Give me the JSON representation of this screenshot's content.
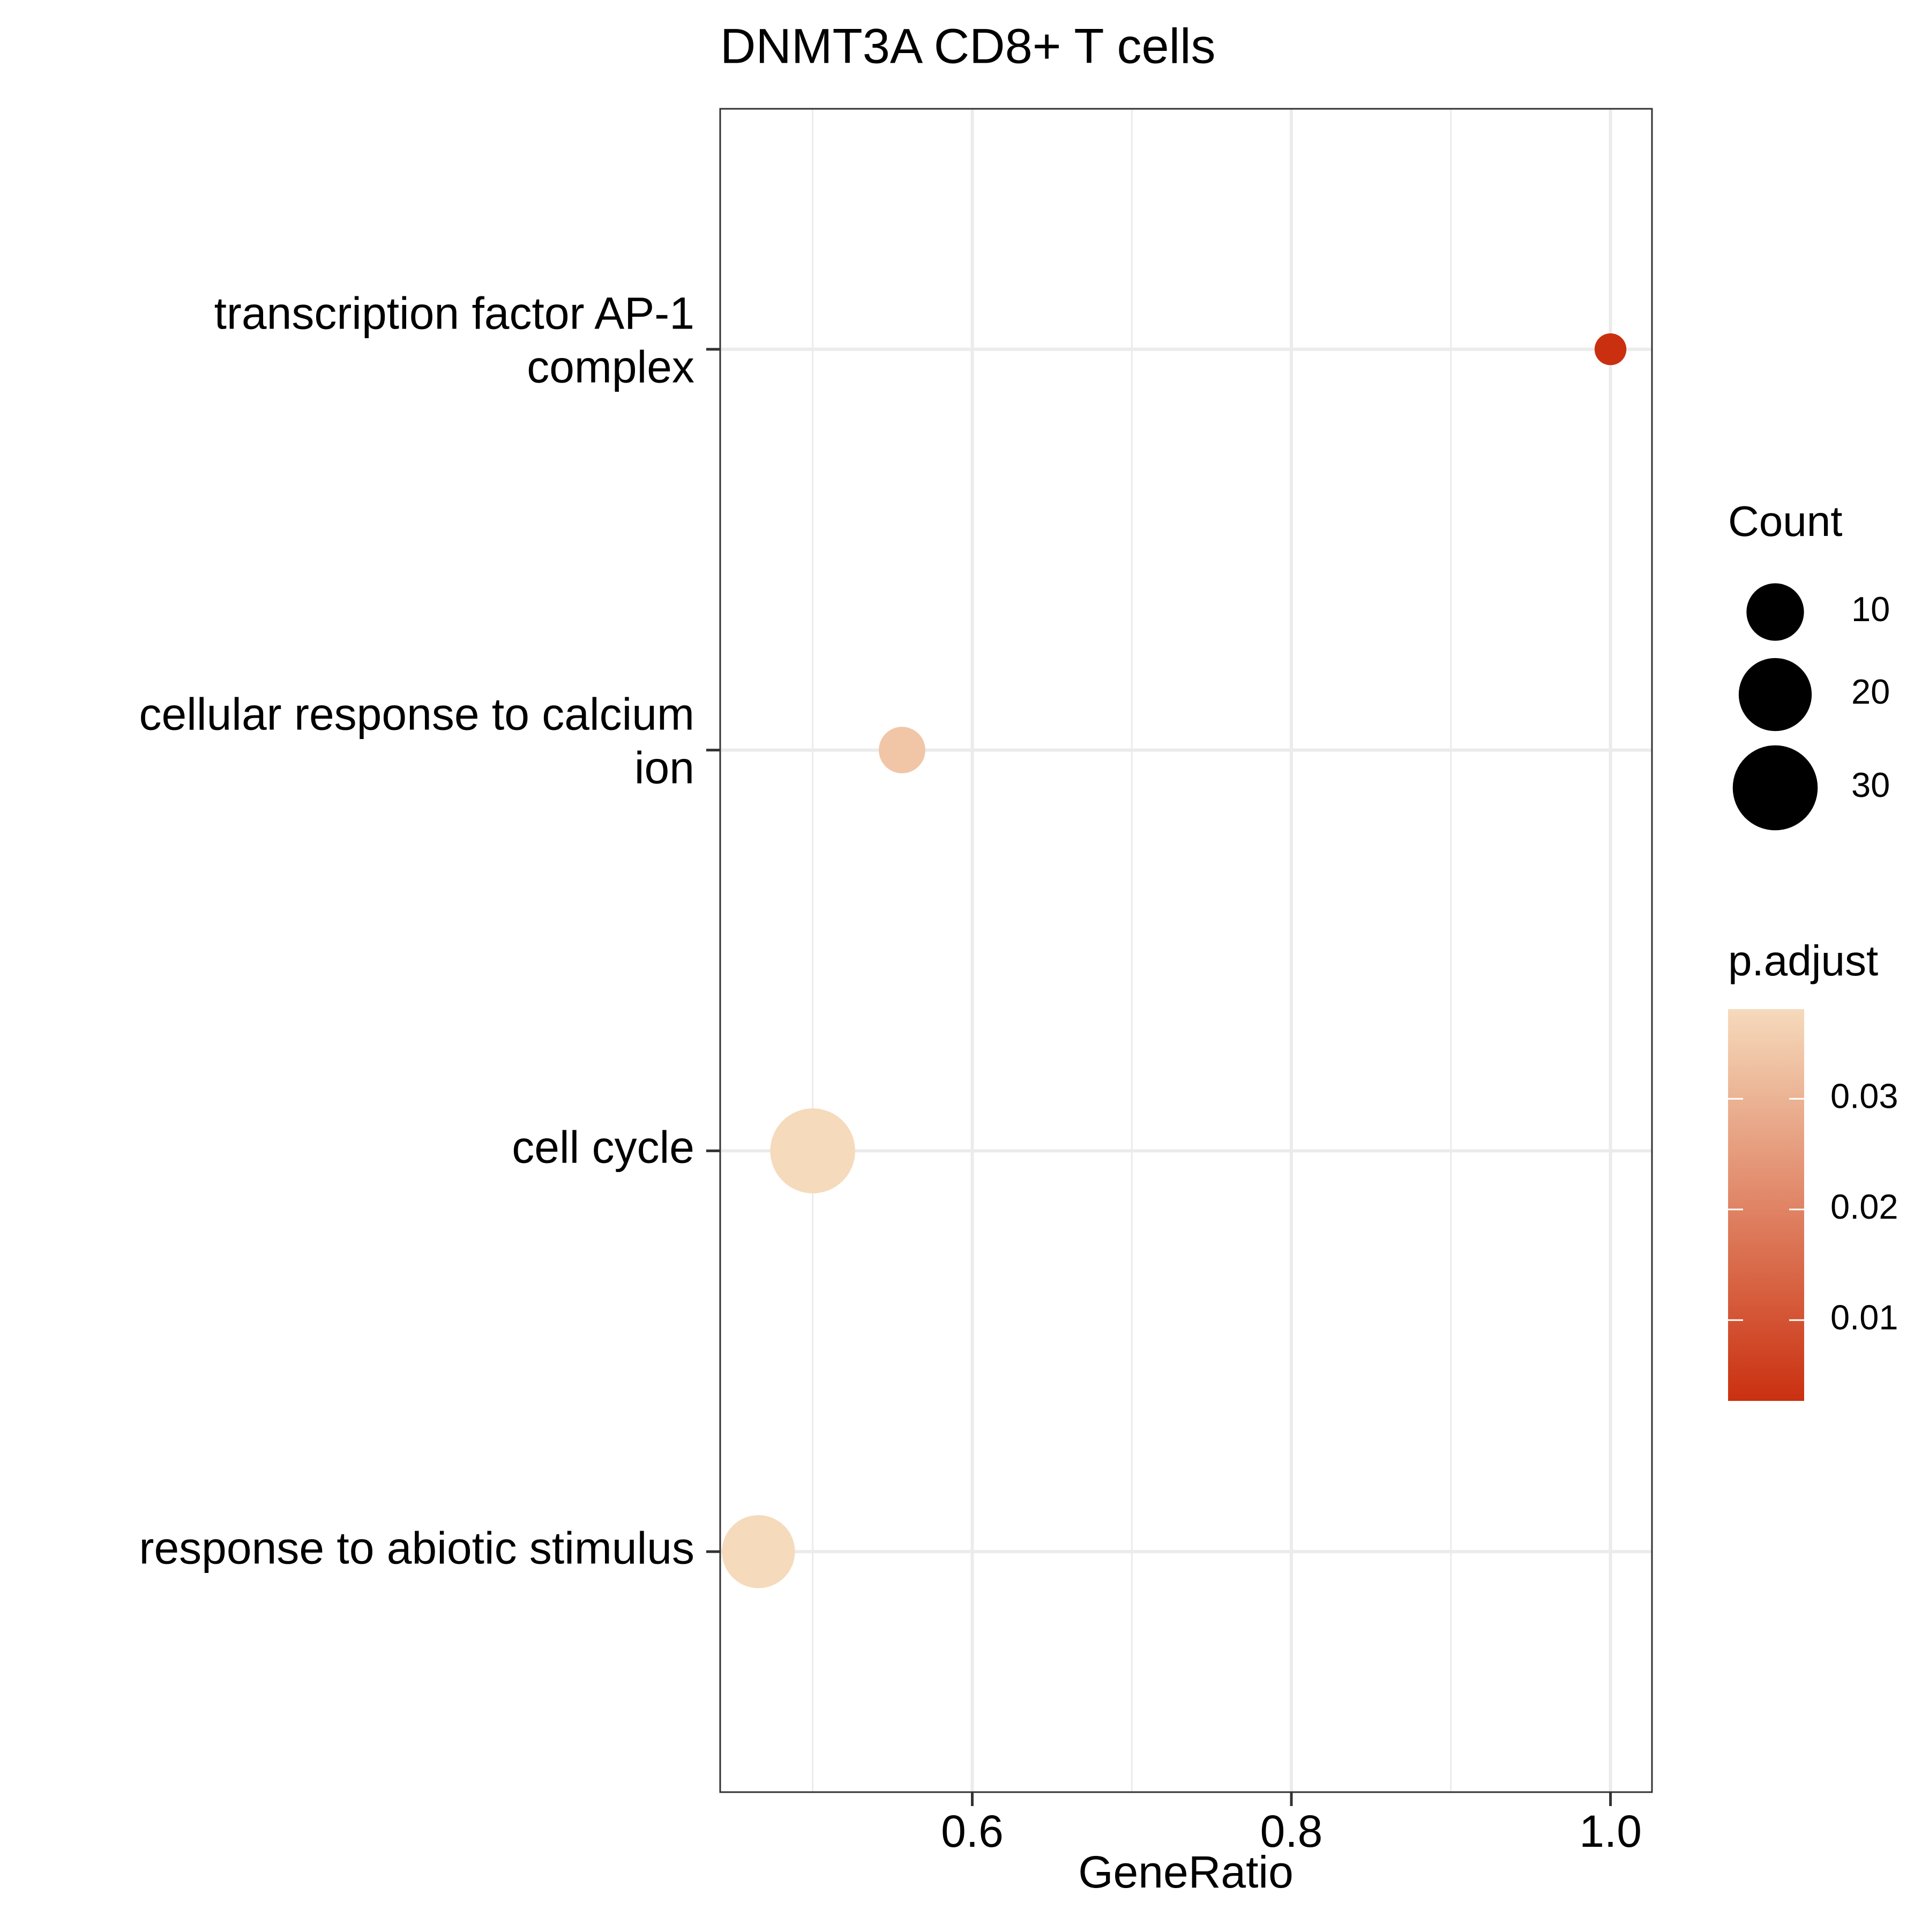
{
  "chart_data": {
    "type": "dot",
    "title": "DNMT3A CD8+ T cells",
    "x_label": "GeneRatio",
    "categories": [
      "transcription factor AP-1\ncomplex",
      "cellular response to calcium\nion",
      "cell cycle",
      "response to abiotic stimulus"
    ],
    "values": [
      1.0,
      0.556,
      0.5,
      0.466
    ],
    "counts": [
      1,
      5,
      30,
      20
    ],
    "p_adjust": [
      0.0027,
      0.034,
      0.038,
      0.038
    ],
    "xlim": [
      0.442,
      1.026
    ],
    "xticks": [
      0.6,
      0.8,
      {
        "value": 1.0,
        "label": "1.0"
      }
    ],
    "x_minor_grid": [
      0.5,
      0.7,
      0.9
    ],
    "grid": true,
    "size_legend": {
      "title": "Count",
      "values": [
        10,
        20,
        30
      ]
    },
    "color_legend": {
      "title": "p.adjust",
      "range": [
        0.0027,
        0.0381
      ],
      "ticks": [
        0.01,
        0.02,
        0.03
      ],
      "low_color": "#ca3010",
      "high_color": "#f5dabb"
    }
  }
}
